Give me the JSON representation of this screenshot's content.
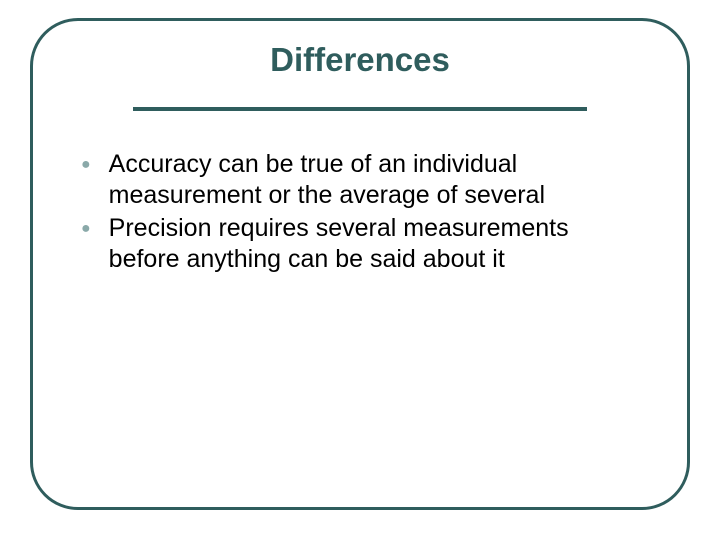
{
  "slide": {
    "title": "Differences",
    "title_color": "#2f5d5d",
    "title_fontsize": 33,
    "border_color": "#2f5d5d",
    "border_width": 3,
    "border_radius": 48,
    "rule_color": "#2f5d5d",
    "rule_thickness": 4,
    "background_color": "#ffffff",
    "bullet_color": "#8aa9a9",
    "bullet_glyph": "●",
    "body_text_color": "#000000",
    "body_fontsize": 25,
    "body_lineheight": 31,
    "bullets": [
      {
        "text": "Accuracy can be true of an individual measurement or the average of several"
      },
      {
        "text": "Precision requires several measurements before anything can be said about it"
      }
    ]
  }
}
